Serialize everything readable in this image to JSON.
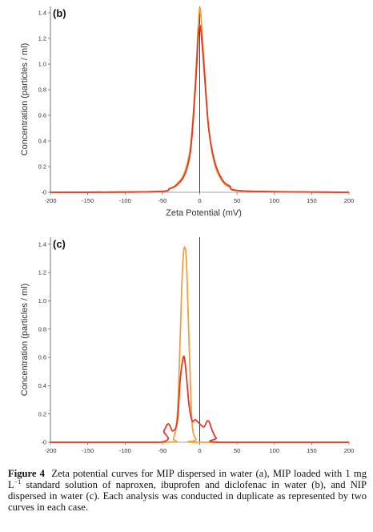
{
  "chart_data": [
    {
      "type": "line",
      "panel_label": "(b)",
      "xlabel": "Zeta Potential (mV)",
      "ylabel": "Concentration (particles / ml)",
      "xlim": [
        -200,
        200
      ],
      "ylim": [
        0,
        1.45
      ],
      "x_ticks": [
        -200,
        -150,
        -100,
        -50,
        0,
        50,
        100,
        150,
        200
      ],
      "y_ticks": [
        0,
        0.2,
        0.4,
        0.6,
        0.8,
        1.0,
        1.2,
        1.4
      ],
      "x_tick_labels": [
        "-200",
        "-150",
        "-100",
        "-50",
        "0",
        "50",
        "100",
        "150",
        "200"
      ],
      "y_tick_labels": [
        "-0",
        "0.2",
        "0.4",
        "0.6",
        "0.8",
        "1.0",
        "1.2",
        "1.4"
      ],
      "zero_line": true,
      "series": [
        {
          "color": "#f0a040",
          "x": [
            -200,
            -60,
            -40,
            -30,
            -20,
            -12,
            -6,
            -2,
            0,
            2,
            6,
            12,
            20,
            30,
            40,
            60,
            200
          ],
          "y": [
            0,
            0.005,
            0.03,
            0.07,
            0.16,
            0.38,
            0.85,
            1.3,
            1.44,
            1.35,
            1.0,
            0.5,
            0.22,
            0.09,
            0.04,
            0.01,
            0
          ]
        },
        {
          "color": "#e03a28",
          "x": [
            -200,
            -60,
            -40,
            -30,
            -20,
            -12,
            -6,
            -2,
            0,
            2,
            6,
            12,
            20,
            30,
            40,
            60,
            200
          ],
          "y": [
            0,
            0.005,
            0.03,
            0.06,
            0.14,
            0.34,
            0.8,
            1.2,
            1.3,
            1.24,
            0.95,
            0.5,
            0.24,
            0.1,
            0.05,
            0.01,
            0
          ]
        }
      ]
    },
    {
      "type": "line",
      "panel_label": "(c)",
      "xlabel": "",
      "ylabel": "Concentration (particles / ml)",
      "xlim": [
        -200,
        200
      ],
      "ylim": [
        0,
        1.45
      ],
      "x_ticks": [
        -200,
        -150,
        -100,
        -50,
        0,
        50,
        100,
        150,
        200
      ],
      "y_ticks": [
        0,
        0.2,
        0.4,
        0.6,
        0.8,
        1.0,
        1.2,
        1.4
      ],
      "x_tick_labels": [
        "-200",
        "-150",
        "-100",
        "-50",
        "0",
        "50",
        "100",
        "150",
        "200"
      ],
      "y_tick_labels": [
        "-0",
        "0.2",
        "0.4",
        "0.6",
        "0.8",
        "1.0",
        "1.2",
        "1.4"
      ],
      "zero_line": true,
      "series": [
        {
          "color": "#f0a040",
          "x": [
            -200,
            -45,
            -35,
            -30,
            -27,
            -24,
            -22,
            -20,
            -18,
            -16,
            -13,
            -10,
            -5,
            0,
            200
          ],
          "y": [
            0,
            0,
            0.03,
            0.2,
            0.6,
            1.1,
            1.32,
            1.38,
            1.3,
            1.0,
            0.5,
            0.12,
            0.02,
            0,
            0
          ]
        },
        {
          "color": "#e03a28",
          "x": [
            -200,
            -55,
            -48,
            -42,
            -36,
            -30,
            -26,
            -22,
            -20,
            -18,
            -14,
            -10,
            -6,
            -2,
            2,
            6,
            10,
            13,
            17,
            22,
            28,
            200
          ],
          "y": [
            0,
            0,
            0.08,
            0.13,
            0.08,
            0.15,
            0.45,
            0.6,
            0.58,
            0.48,
            0.25,
            0.15,
            0.16,
            0.14,
            0.12,
            0.11,
            0.15,
            0.14,
            0.08,
            0.03,
            0,
            0
          ]
        }
      ]
    }
  ],
  "caption": {
    "figure_label": "Figure 4",
    "text_parts": [
      "Zeta potential curves for MIP dispersed in water (a), MIP loaded with 1 mg L",
      "−1",
      " standard solution of naproxen, ibuprofen and diclofenac in water (b), and NIP dispersed in water (c). Each analysis was conducted in duplicate as represented by two curves in each case."
    ]
  }
}
